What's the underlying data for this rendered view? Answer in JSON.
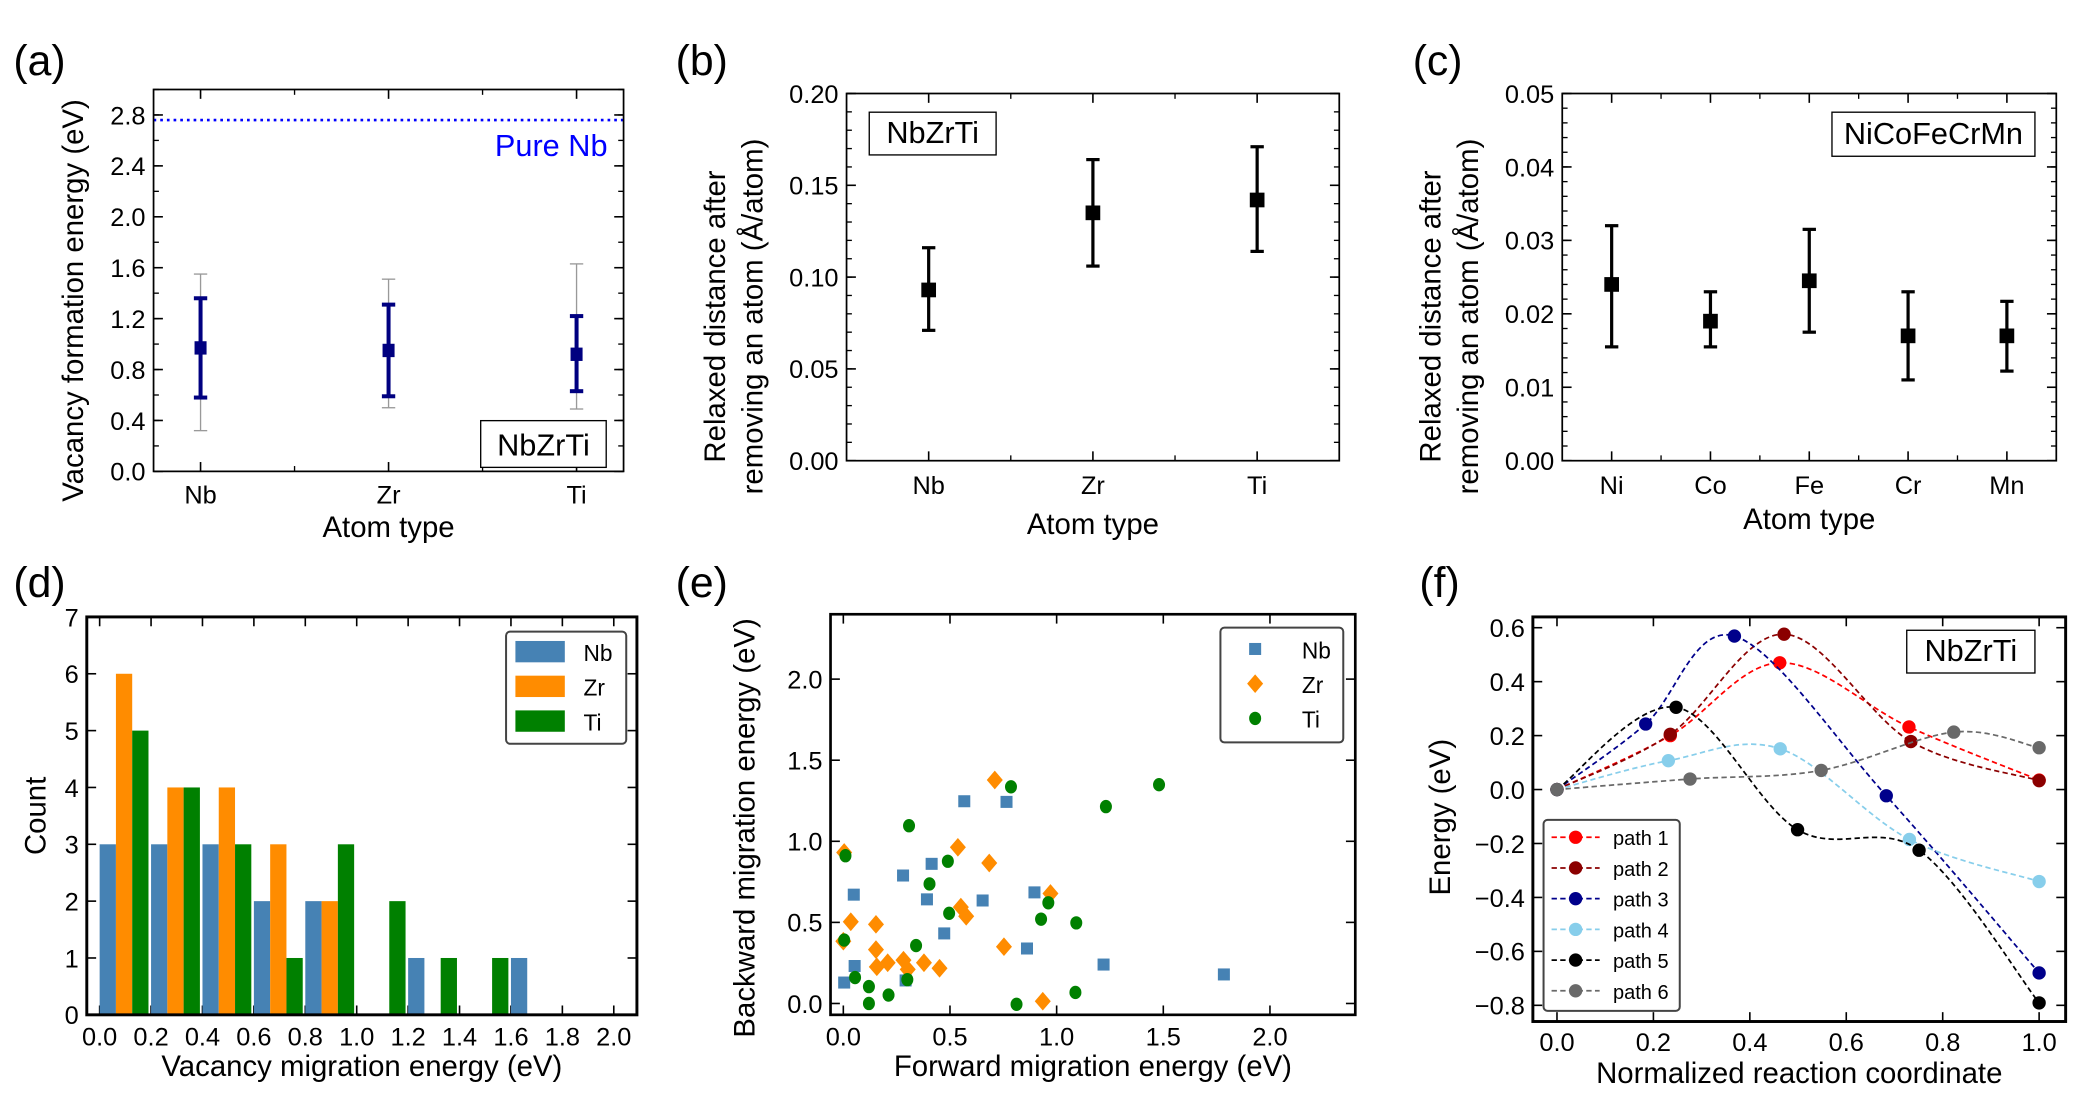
{
  "chart_data": [
    {
      "id": "a",
      "panel_label": "(a)",
      "type": "scatter",
      "categories": [
        "Nb",
        "Zr",
        "Ti"
      ],
      "values": [
        0.97,
        0.95,
        0.92
      ],
      "err_inner": [
        [
          0.58,
          1.36
        ],
        [
          0.59,
          1.31
        ],
        [
          0.63,
          1.22
        ]
      ],
      "err_outer": [
        [
          0.32,
          1.55
        ],
        [
          0.5,
          1.51
        ],
        [
          0.49,
          1.63
        ]
      ],
      "xlabel": "Atom type",
      "ylabel": "Vacancy formation energy (eV)",
      "ylim": [
        0,
        3.0
      ],
      "yticks": [
        0,
        0.4,
        0.8,
        1.2,
        1.6,
        2.0,
        2.4,
        2.8
      ],
      "ytick_labels": [
        "0.0",
        "0.4",
        "0.8",
        "1.2",
        "1.6",
        "2.0",
        "2.4",
        "2.8"
      ],
      "reference_line": {
        "label": "Pure Nb",
        "value": 2.76,
        "color": "#0000ff"
      },
      "annotation": "NbZrTi",
      "color": "#000080",
      "outer_color": "#999999"
    },
    {
      "id": "b",
      "panel_label": "(b)",
      "type": "scatter",
      "categories": [
        "Nb",
        "Zr",
        "Ti"
      ],
      "values": [
        0.093,
        0.135,
        0.142
      ],
      "err": [
        [
          0.071,
          0.116
        ],
        [
          0.106,
          0.164
        ],
        [
          0.114,
          0.171
        ]
      ],
      "xlabel": "Atom type",
      "ylabel": [
        "Relaxed distance after",
        "removing an atom (Å/atom)"
      ],
      "ylim": [
        0,
        0.2
      ],
      "yticks": [
        0,
        0.05,
        0.1,
        0.15,
        0.2
      ],
      "ytick_labels": [
        "0.00",
        "0.05",
        "0.10",
        "0.15",
        "0.20"
      ],
      "annotation": "NbZrTi",
      "color": "#000000"
    },
    {
      "id": "c",
      "panel_label": "(c)",
      "type": "scatter",
      "categories": [
        "Ni",
        "Co",
        "Fe",
        "Cr",
        "Mn"
      ],
      "values": [
        0.024,
        0.019,
        0.0245,
        0.017,
        0.017
      ],
      "err": [
        [
          0.0155,
          0.032
        ],
        [
          0.0155,
          0.023
        ],
        [
          0.0175,
          0.0315
        ],
        [
          0.011,
          0.023
        ],
        [
          0.0122,
          0.0217
        ]
      ],
      "xlabel": "Atom type",
      "ylabel": [
        "Relaxed distance after",
        "removing an atom (Å/atom)"
      ],
      "ylim": [
        0,
        0.05
      ],
      "yticks": [
        0,
        0.01,
        0.02,
        0.03,
        0.04,
        0.05
      ],
      "ytick_labels": [
        "0.00",
        "0.01",
        "0.02",
        "0.03",
        "0.04",
        "0.05"
      ],
      "annotation": "NiCoFeCrMn",
      "color": "#000000"
    },
    {
      "id": "d",
      "panel_label": "(d)",
      "type": "bar",
      "bin_edges": [
        0,
        0.2,
        0.4,
        0.6,
        0.8,
        1.0,
        1.2,
        1.4,
        1.6,
        1.8
      ],
      "series": [
        {
          "name": "Nb",
          "values": [
            3,
            3,
            3,
            2,
            2,
            0,
            1,
            0,
            1
          ],
          "color": "#4682b4"
        },
        {
          "name": "Zr",
          "values": [
            6,
            4,
            4,
            3,
            2,
            0,
            0,
            0,
            0
          ],
          "color": "#ff8c00"
        },
        {
          "name": "Ti",
          "values": [
            5,
            4,
            3,
            1,
            3,
            2,
            1,
            1,
            0
          ],
          "color": "#008000"
        }
      ],
      "xlabel": "Vacancy migration energy (eV)",
      "ylabel": "Count",
      "xlim": [
        -0.05,
        2.09
      ],
      "ylim": [
        0,
        7
      ],
      "xticks": [
        0,
        0.2,
        0.4,
        0.6,
        0.8,
        1.0,
        1.2,
        1.4,
        1.6,
        1.8,
        2.0
      ],
      "xtick_labels": [
        "0.0",
        "0.2",
        "0.4",
        "0.6",
        "0.8",
        "1.0",
        "1.2",
        "1.4",
        "1.6",
        "1.8",
        "2.0"
      ],
      "yticks": [
        0,
        1,
        2,
        3,
        4,
        5,
        6,
        7
      ],
      "ytick_labels": [
        "0",
        "1",
        "2",
        "3",
        "4",
        "5",
        "6",
        "7"
      ],
      "legend": "top-right"
    },
    {
      "id": "e",
      "panel_label": "(e)",
      "type": "scatter",
      "series": [
        {
          "name": "Nb",
          "marker": "square",
          "color": "#4682b4",
          "x": [
            0.567,
            0.765,
            0.414,
            0.28,
            0.049,
            0.392,
            0.653,
            0.896,
            0.473,
            0.861,
            0.053,
            0.004,
            0.292,
            1.22,
            1.784
          ],
          "y": [
            1.247,
            1.243,
            0.861,
            0.789,
            0.671,
            0.642,
            0.635,
            0.685,
            0.432,
            0.339,
            0.231,
            0.129,
            0.142,
            0.24,
            0.179
          ]
        },
        {
          "name": "Zr",
          "marker": "diamond",
          "color": "#ff8c00",
          "x": [
            0.71,
            0.537,
            0.684,
            0.971,
            0.551,
            0.576,
            0.035,
            0.153,
            0.004,
            0.0,
            0.153,
            0.753,
            0.157,
            0.208,
            0.282,
            0.302,
            0.378,
            0.451,
            0.935
          ],
          "y": [
            1.378,
            0.963,
            0.866,
            0.678,
            0.594,
            0.538,
            0.504,
            0.488,
            0.931,
            0.384,
            0.332,
            0.35,
            0.226,
            0.251,
            0.267,
            0.21,
            0.251,
            0.217,
            0.014
          ]
        },
        {
          "name": "Ti",
          "marker": "circle",
          "color": "#008000",
          "x": [
            0.786,
            1.48,
            1.231,
            0.308,
            0.01,
            0.49,
            0.404,
            0.961,
            0.496,
            0.927,
            1.092,
            0.004,
            0.341,
            0.055,
            0.12,
            0.3,
            0.212,
            0.12,
            0.812,
            1.088
          ],
          "y": [
            1.336,
            1.349,
            1.214,
            1.096,
            0.911,
            0.877,
            0.737,
            0.621,
            0.556,
            0.52,
            0.497,
            0.391,
            0.357,
            0.16,
            0.104,
            0.147,
            0.052,
            0.0,
            -0.005,
            0.068
          ]
        }
      ],
      "xlabel": "Forward migration energy (eV)",
      "ylabel": "Backward migration energy (eV)",
      "xlim": [
        -0.06,
        2.4
      ],
      "ylim": [
        -0.07,
        2.4
      ],
      "xticks": [
        0,
        0.5,
        1.0,
        1.5,
        2.0
      ],
      "xtick_labels": [
        "0.0",
        "0.5",
        "1.0",
        "1.5",
        "2.0"
      ],
      "yticks": [
        0,
        0.5,
        1.0,
        1.5,
        2.0
      ],
      "ytick_labels": [
        "0.0",
        "0.5",
        "1.0",
        "1.5",
        "2.0"
      ],
      "legend": "top-right"
    },
    {
      "id": "f",
      "panel_label": "(f)",
      "type": "line",
      "series": [
        {
          "name": "path 1",
          "color": "#ff0000",
          "x": [
            0,
            0.235,
            0.462,
            0.73,
            1.0
          ],
          "y": [
            0,
            0.2,
            0.47,
            0.232,
            0.035
          ]
        },
        {
          "name": "path 2",
          "color": "#8b0000",
          "x": [
            0,
            0.235,
            0.471,
            0.734,
            1.0
          ],
          "y": [
            0,
            0.205,
            0.576,
            0.178,
            0.033
          ]
        },
        {
          "name": "path 3",
          "color": "#00008b",
          "x": [
            0,
            0.184,
            0.368,
            0.683,
            1.0
          ],
          "y": [
            0,
            0.243,
            0.569,
            -0.023,
            -0.68
          ]
        },
        {
          "name": "path 4",
          "color": "#87ceeb",
          "x": [
            0,
            0.231,
            0.463,
            0.731,
            1.0
          ],
          "y": [
            0,
            0.107,
            0.151,
            -0.185,
            -0.341
          ]
        },
        {
          "name": "path 5",
          "color": "#000000",
          "x": [
            0,
            0.247,
            0.499,
            0.751,
            1.0
          ],
          "y": [
            0,
            0.305,
            -0.149,
            -0.225,
            -0.791
          ]
        },
        {
          "name": "path 6",
          "color": "#696969",
          "x": [
            0,
            0.276,
            0.548,
            0.823,
            1.0
          ],
          "y": [
            0,
            0.039,
            0.071,
            0.213,
            0.155
          ]
        }
      ],
      "xlabel": "Normalized reaction coordinate",
      "ylabel": "Energy (eV)",
      "xlim": [
        -0.05,
        1.055
      ],
      "ylim": [
        -0.86,
        0.64
      ],
      "xticks": [
        0,
        0.2,
        0.4,
        0.6,
        0.8,
        1.0
      ],
      "xtick_labels": [
        "0.0",
        "0.2",
        "0.4",
        "0.6",
        "0.8",
        "1.0"
      ],
      "yticks": [
        -0.8,
        -0.6,
        -0.4,
        -0.2,
        0,
        0.2,
        0.4,
        0.6
      ],
      "ytick_labels": [
        "−0.8",
        "−0.6",
        "−0.4",
        "−0.2",
        "0.0",
        "0.2",
        "0.4",
        "0.6"
      ],
      "annotation": "NbZrTi",
      "legend": "lower-left"
    }
  ]
}
